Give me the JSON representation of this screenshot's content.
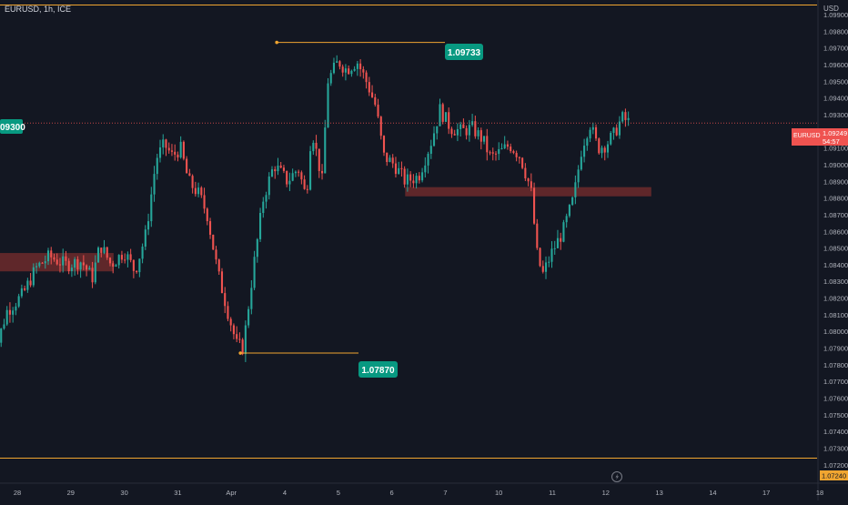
{
  "header": {
    "symbol_label": "EURUSD, 1h, ICE",
    "currency": "USD"
  },
  "colors": {
    "background": "#131722",
    "up": "#26a69a",
    "down": "#ef5350",
    "level_line": "#f0a530",
    "zone_fill": "#7a2e2e",
    "axis_text": "#b2b5be",
    "price_line": "#ef5350"
  },
  "price_badge": {
    "symbol": "EURUSD",
    "price": "1.09249",
    "countdown": "54:57"
  },
  "bottom_badge": {
    "price": "1.07240"
  },
  "left_badge": {
    "text": "09300"
  },
  "annotations": [
    {
      "label": "1.09733",
      "value": 1.09733,
      "kind": "high"
    },
    {
      "label": "1.07870",
      "value": 1.0787,
      "kind": "low"
    }
  ],
  "chart_data": {
    "type": "candlestick",
    "title": "",
    "interval": "1h",
    "y_axis": {
      "unit": "USD",
      "range": [
        1.0715,
        1.0996
      ],
      "ticks": [
        "1.09900",
        "1.09800",
        "1.09700",
        "1.09600",
        "1.09500",
        "1.09400",
        "1.09300",
        "1.09200",
        "1.09100",
        "1.09000",
        "1.08900",
        "1.08800",
        "1.08700",
        "1.08600",
        "1.08500",
        "1.08400",
        "1.08300",
        "1.08200",
        "1.08100",
        "1.08000",
        "1.07900",
        "1.07800",
        "1.07700",
        "1.07600",
        "1.07500",
        "1.07400",
        "1.07300",
        "1.07200"
      ]
    },
    "x_axis": {
      "ticks": [
        {
          "label": "28",
          "day": 0
        },
        {
          "label": "29",
          "day": 1
        },
        {
          "label": "30",
          "day": 2
        },
        {
          "label": "31",
          "day": 3
        },
        {
          "label": "Apr",
          "day": 4
        },
        {
          "label": "4",
          "day": 5
        },
        {
          "label": "5",
          "day": 6
        },
        {
          "label": "6",
          "day": 7
        },
        {
          "label": "7",
          "day": 8
        },
        {
          "label": "10",
          "day": 9
        },
        {
          "label": "11",
          "day": 10
        },
        {
          "label": "12",
          "day": 11
        },
        {
          "label": "13",
          "day": 12
        },
        {
          "label": "14",
          "day": 13
        },
        {
          "label": "17",
          "day": 14
        },
        {
          "label": "18",
          "day": 15
        }
      ]
    },
    "close_path": [
      [
        -0.55,
        1.0772
      ],
      [
        -0.2,
        1.0812
      ],
      [
        0.1,
        1.0822
      ],
      [
        0.35,
        1.0838
      ],
      [
        0.6,
        1.0845
      ],
      [
        0.9,
        1.084
      ],
      [
        1.2,
        1.0842
      ],
      [
        1.4,
        1.0832
      ],
      [
        1.55,
        1.0852
      ],
      [
        1.75,
        1.084
      ],
      [
        2.0,
        1.0848
      ],
      [
        2.2,
        1.0836
      ],
      [
        2.4,
        1.0858
      ],
      [
        2.6,
        1.0904
      ],
      [
        2.75,
        1.0912
      ],
      [
        2.9,
        1.0905
      ],
      [
        3.05,
        1.091
      ],
      [
        3.2,
        1.089
      ],
      [
        3.4,
        1.0882
      ],
      [
        3.55,
        1.087
      ],
      [
        3.75,
        1.0835
      ],
      [
        3.95,
        1.081
      ],
      [
        4.1,
        1.0792
      ],
      [
        4.22,
        1.079
      ],
      [
        4.4,
        1.0835
      ],
      [
        4.6,
        1.088
      ],
      [
        4.8,
        1.09
      ],
      [
        5.05,
        1.089
      ],
      [
        5.25,
        1.0898
      ],
      [
        5.4,
        1.088
      ],
      [
        5.5,
        1.0922
      ],
      [
        5.7,
        1.089
      ],
      [
        5.8,
        1.095
      ],
      [
        6.0,
        1.0962
      ],
      [
        6.15,
        1.0957
      ],
      [
        6.35,
        1.0962
      ],
      [
        6.55,
        1.0948
      ],
      [
        6.7,
        1.0935
      ],
      [
        6.85,
        1.0905
      ],
      [
        7.05,
        1.09
      ],
      [
        7.25,
        1.089
      ],
      [
        7.5,
        1.0893
      ],
      [
        7.75,
        1.0915
      ],
      [
        7.9,
        1.0933
      ],
      [
        8.1,
        1.0922
      ],
      [
        8.3,
        1.092
      ],
      [
        8.5,
        1.0922
      ],
      [
        8.7,
        1.0915
      ],
      [
        8.85,
        1.0904
      ],
      [
        9.05,
        1.0908
      ],
      [
        9.2,
        1.0912
      ],
      [
        9.4,
        1.0905
      ],
      [
        9.6,
        1.0885
      ],
      [
        9.72,
        1.0845
      ],
      [
        9.82,
        1.0834
      ],
      [
        10.0,
        1.0848
      ],
      [
        10.2,
        1.086
      ],
      [
        10.4,
        1.088
      ],
      [
        10.55,
        1.091
      ],
      [
        10.7,
        1.0925
      ],
      [
        10.85,
        1.091
      ],
      [
        11.0,
        1.0912
      ],
      [
        11.15,
        1.0918
      ],
      [
        11.3,
        1.0928
      ],
      [
        11.45,
        1.0925
      ]
    ],
    "total_candles": 218,
    "levels": [
      {
        "value": 1.09733,
        "from_day": 4.85,
        "to_day": 7.2
      },
      {
        "value": 1.0787,
        "from_day": 4.17,
        "to_day": 6.25
      }
    ],
    "zones": [
      {
        "from_day": -0.4,
        "to_day": 1.8,
        "top": 1.0847,
        "bottom": 1.0836
      },
      {
        "from_day": 7.25,
        "to_day": 11.85,
        "top": 1.08865,
        "bottom": 1.0881
      }
    ],
    "current_price": 1.09249,
    "bottom_line": 1.0724,
    "grid": false
  }
}
